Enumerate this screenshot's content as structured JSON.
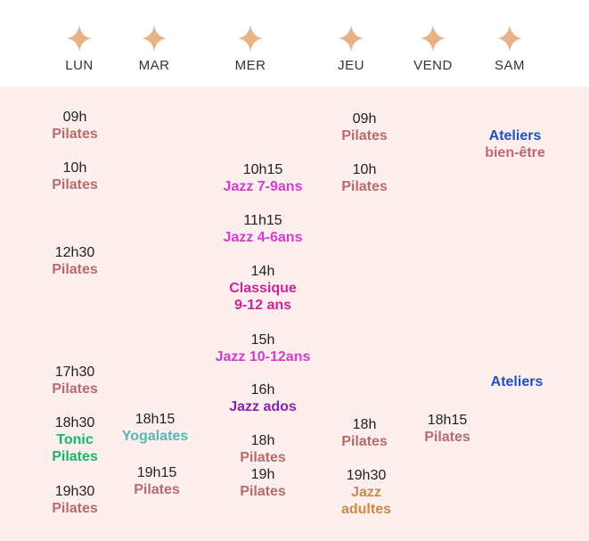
{
  "days": [
    "LUN",
    "MAR",
    "MER",
    "JEU",
    "VEND",
    "SAM"
  ],
  "colors": {
    "star": "#e8b287",
    "panel_bg": "#fcefee",
    "pilates": "#b96a6a",
    "jazz": "#d63ccf",
    "classique": "#d5209f",
    "jazz_ados": "#8b1fb0",
    "tonic_pilates": "#19b667",
    "yogalates": "#5ab4b1",
    "jazz_adultes": "#c98a4b",
    "ateliers": "#1f4fc4"
  },
  "lun": [
    {
      "time": "09h",
      "name": "Pilates"
    },
    {
      "time": "10h",
      "name": "Pilates"
    },
    {
      "time": "12h30",
      "name": "Pilates"
    },
    {
      "time": "17h30",
      "name": "Pilates"
    },
    {
      "time": "18h30",
      "name": "Tonic",
      "name2": "Pilates"
    },
    {
      "time": "19h30",
      "name": "Pilates"
    }
  ],
  "mar": [
    {
      "time": "18h15",
      "name": "Yogalates"
    },
    {
      "time": "19h15",
      "name": "Pilates"
    }
  ],
  "mer": [
    {
      "time": "10h15",
      "name": "Jazz 7-9ans"
    },
    {
      "time": "11h15",
      "name": "Jazz 4-6ans"
    },
    {
      "time": "14h",
      "name": "Classique",
      "name2": "9-12 ans"
    },
    {
      "time": "15h",
      "name": "Jazz 10-12ans"
    },
    {
      "time": "16h",
      "name": "Jazz ados"
    },
    {
      "time": "18h",
      "name": "Pilates"
    },
    {
      "time": "19h",
      "name": "Pilates"
    }
  ],
  "jeu": [
    {
      "time": "09h",
      "name": "Pilates"
    },
    {
      "time": "10h",
      "name": "Pilates"
    },
    {
      "time": "18h",
      "name": "Pilates"
    },
    {
      "time": "19h30",
      "name": "Jazz",
      "name2": "adultes"
    }
  ],
  "vend": [
    {
      "time": "18h15",
      "name": "Pilates"
    }
  ],
  "sam": [
    {
      "name": "Ateliers",
      "name2": "bien-être"
    },
    {
      "name": "Ateliers"
    }
  ]
}
